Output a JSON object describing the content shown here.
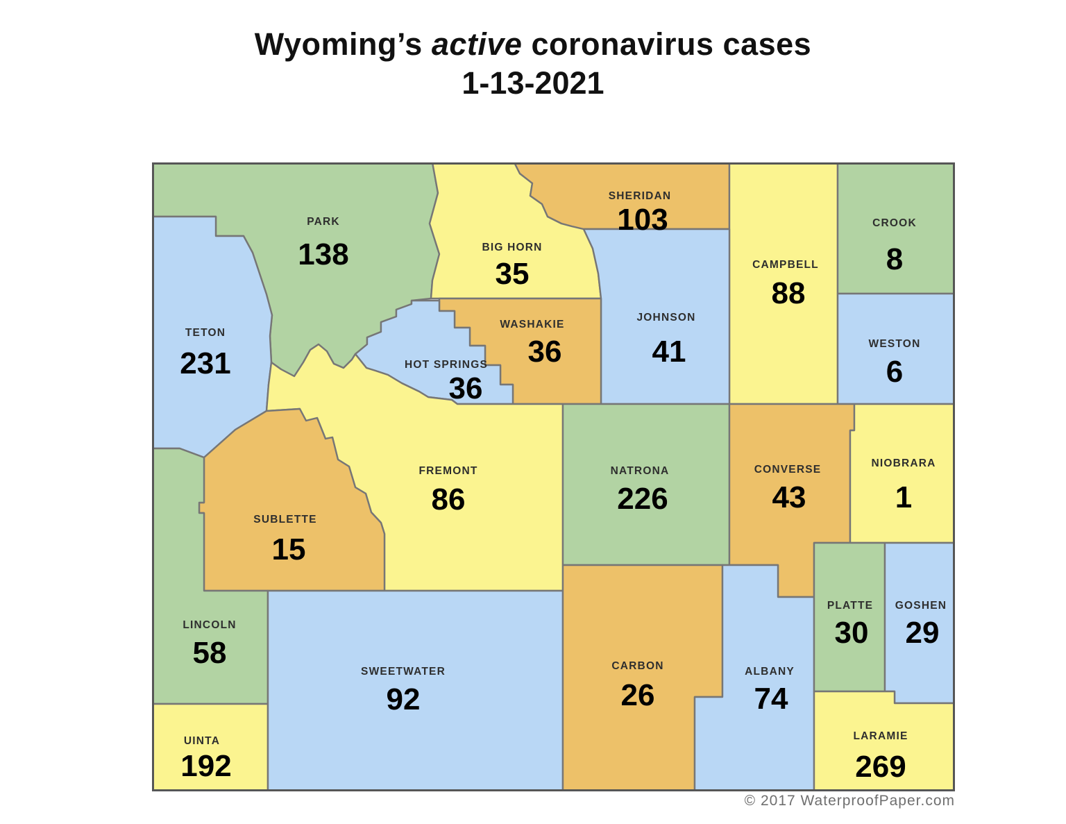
{
  "title": {
    "prefix": "Wyoming’s",
    "emphasis": "active",
    "suffix": "coronavirus cases",
    "date_line": "1-13-2021"
  },
  "copyright": "© 2017 WaterproofPaper.com",
  "palette": {
    "green": "#b2d3a3",
    "blue": "#b9d7f5",
    "yellow": "#fbf490",
    "orange": "#edc169",
    "county_border": "#767676",
    "map_border": "#565656",
    "name_color": "#2e2e2e",
    "value_color": "#000000"
  },
  "map_data": {
    "type": "choropleth-map",
    "region": "Wyoming counties",
    "metric": "active coronavirus cases",
    "date": "1-13-2021",
    "counties": [
      {
        "id": "park",
        "name": "PARK",
        "value": 138,
        "color": "green"
      },
      {
        "id": "teton",
        "name": "TETON",
        "value": 231,
        "color": "blue"
      },
      {
        "id": "big-horn",
        "name": "BIG HORN",
        "value": 35,
        "color": "yellow"
      },
      {
        "id": "sheridan",
        "name": "SHERIDAN",
        "value": 103,
        "color": "orange"
      },
      {
        "id": "campbell",
        "name": "CAMPBELL",
        "value": 88,
        "color": "yellow"
      },
      {
        "id": "crook",
        "name": "CROOK",
        "value": 8,
        "color": "green"
      },
      {
        "id": "weston",
        "name": "WESTON",
        "value": 6,
        "color": "blue"
      },
      {
        "id": "johnson",
        "name": "JOHNSON",
        "value": 41,
        "color": "blue"
      },
      {
        "id": "washakie",
        "name": "WASHAKIE",
        "value": 36,
        "color": "orange"
      },
      {
        "id": "hot-springs",
        "name": "HOT SPRINGS",
        "value": 36,
        "color": "blue"
      },
      {
        "id": "fremont",
        "name": "FREMONT",
        "value": 86,
        "color": "yellow"
      },
      {
        "id": "natrona",
        "name": "NATRONA",
        "value": 226,
        "color": "green"
      },
      {
        "id": "converse",
        "name": "CONVERSE",
        "value": 43,
        "color": "orange"
      },
      {
        "id": "niobrara",
        "name": "NIOBRARA",
        "value": 1,
        "color": "yellow"
      },
      {
        "id": "sublette",
        "name": "SUBLETTE",
        "value": 15,
        "color": "orange"
      },
      {
        "id": "lincoln",
        "name": "LINCOLN",
        "value": 58,
        "color": "green"
      },
      {
        "id": "uinta",
        "name": "UINTA",
        "value": 192,
        "color": "yellow"
      },
      {
        "id": "sweetwater",
        "name": "SWEETWATER",
        "value": 92,
        "color": "blue"
      },
      {
        "id": "carbon",
        "name": "CARBON",
        "value": 26,
        "color": "orange"
      },
      {
        "id": "albany",
        "name": "ALBANY",
        "value": 74,
        "color": "blue"
      },
      {
        "id": "platte",
        "name": "PLATTE",
        "value": 30,
        "color": "green"
      },
      {
        "id": "goshen",
        "name": "GOSHEN",
        "value": 29,
        "color": "blue"
      },
      {
        "id": "laramie",
        "name": "LARAMIE",
        "value": 269,
        "color": "yellow"
      }
    ]
  }
}
